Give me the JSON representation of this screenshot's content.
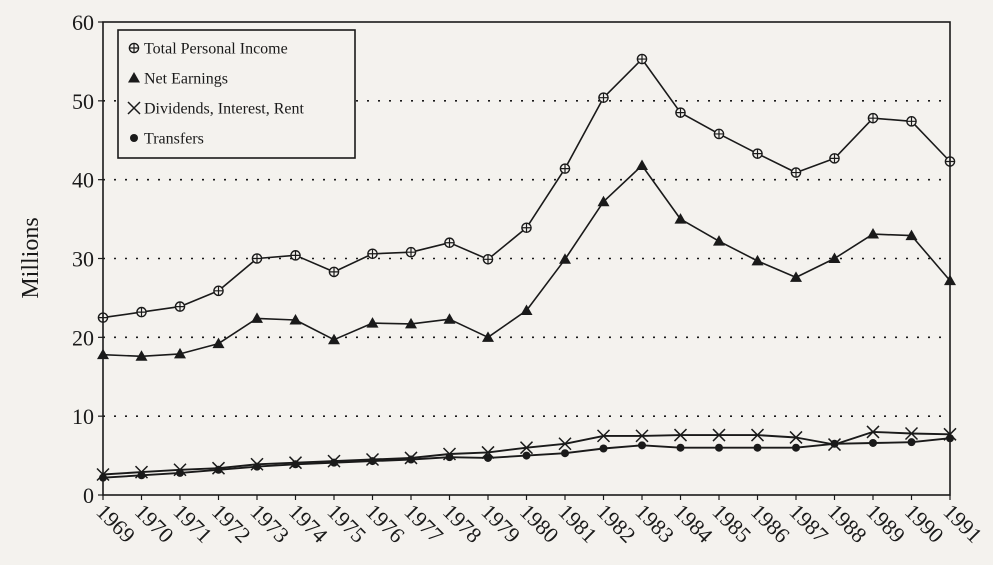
{
  "chart_data": {
    "type": "line",
    "title": "",
    "xlabel": "",
    "ylabel": "Millions",
    "ylim": [
      0,
      60
    ],
    "yticks": [
      0,
      10,
      20,
      30,
      40,
      50,
      60
    ],
    "grid": "horizontal dotted",
    "legend_position": "top-left",
    "categories": [
      "1969",
      "1970",
      "1971",
      "1972",
      "1973",
      "1974",
      "1975",
      "1976",
      "1977",
      "1978",
      "1979",
      "1980",
      "1981",
      "1982",
      "1983",
      "1984",
      "1985",
      "1986",
      "1987",
      "1988",
      "1989",
      "1990",
      "1991"
    ],
    "series": [
      {
        "name": "Total Personal Income",
        "marker": "open-circle-plus",
        "values": [
          22.5,
          23.2,
          23.9,
          25.9,
          30.0,
          30.4,
          28.3,
          30.6,
          30.8,
          32.0,
          29.9,
          33.9,
          41.4,
          50.4,
          55.3,
          48.5,
          45.8,
          43.3,
          40.9,
          42.7,
          47.8,
          47.4,
          42.3
        ]
      },
      {
        "name": "Net Earnings",
        "marker": "filled-triangle",
        "values": [
          17.8,
          17.6,
          17.9,
          19.2,
          22.4,
          22.2,
          19.7,
          21.8,
          21.7,
          22.3,
          20.0,
          23.4,
          29.9,
          37.2,
          41.8,
          35.0,
          32.2,
          29.7,
          27.6,
          30.0,
          33.1,
          32.9,
          27.2
        ]
      },
      {
        "name": "Dividends, Interest, Rent",
        "marker": "x",
        "values": [
          2.6,
          2.9,
          3.2,
          3.4,
          3.9,
          4.1,
          4.3,
          4.5,
          4.7,
          5.2,
          5.4,
          6.0,
          6.5,
          7.5,
          7.5,
          7.6,
          7.6,
          7.6,
          7.3,
          6.4,
          8.0,
          7.8,
          7.7
        ]
      },
      {
        "name": "Transfers",
        "marker": "filled-circle",
        "values": [
          2.2,
          2.5,
          2.8,
          3.2,
          3.6,
          3.9,
          4.1,
          4.3,
          4.5,
          4.8,
          4.7,
          5.0,
          5.3,
          5.9,
          6.3,
          6.0,
          6.0,
          6.0,
          6.0,
          6.5,
          6.6,
          6.7,
          7.2
        ]
      }
    ]
  }
}
